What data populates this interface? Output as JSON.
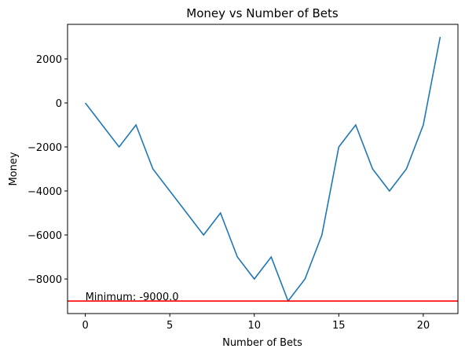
{
  "chart_data": {
    "type": "line",
    "title": "Money vs Number of Bets",
    "x_label": "Number of Bets",
    "y_label": "Money",
    "x": [
      0,
      1,
      2,
      3,
      4,
      5,
      6,
      7,
      8,
      9,
      10,
      11,
      12,
      13,
      14,
      15,
      16,
      17,
      18,
      19,
      20,
      21
    ],
    "series": [
      {
        "name": "Money",
        "color": "#1f77b4",
        "values": [
          0,
          -1000,
          -2000,
          -1000,
          -3000,
          -4000,
          -5000,
          -6000,
          -5000,
          -7000,
          -8000,
          -7000,
          -9000,
          -8000,
          -6000,
          -2000,
          -1000,
          -3000,
          -4000,
          -3000,
          -1000,
          3000
        ]
      }
    ],
    "hline": {
      "value": -9000,
      "color": "#ff0000"
    },
    "annotation": {
      "text": "Minimum: -9000.0",
      "x": 0,
      "y": -9000
    },
    "xlim": [
      -1.05,
      22.05
    ],
    "ylim": [
      -9570,
      3570
    ],
    "xticks": [
      0,
      5,
      10,
      15,
      20
    ],
    "yticks": [
      {
        "value": -8000,
        "label": "−8000"
      },
      {
        "value": -6000,
        "label": "−6000"
      },
      {
        "value": -4000,
        "label": "−4000"
      },
      {
        "value": -2000,
        "label": "−2000"
      },
      0,
      2000
    ],
    "grid": false
  }
}
